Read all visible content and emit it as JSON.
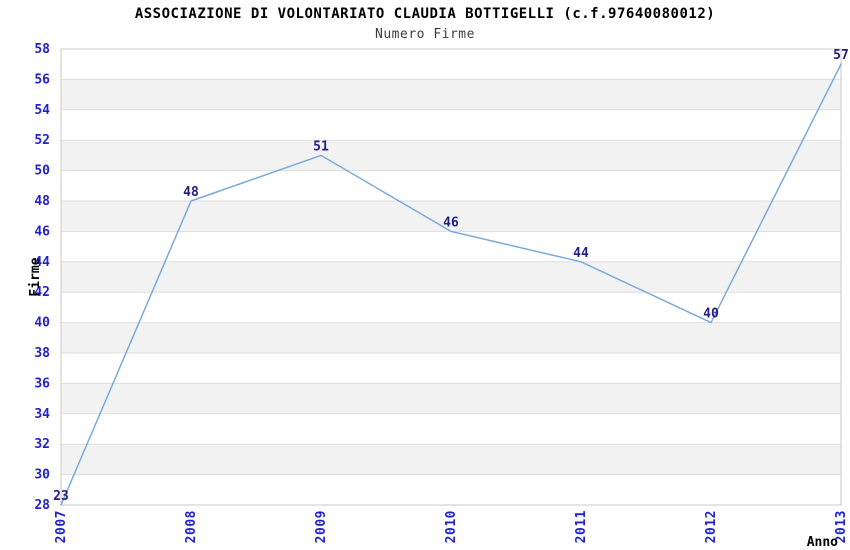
{
  "chart_data": {
    "type": "line",
    "title": "ASSOCIAZIONE DI VOLONTARIATO CLAUDIA BOTTIGELLI (c.f.97640080012)",
    "subtitle": "Numero Firme",
    "xlabel": "Anno",
    "ylabel": "Firme",
    "categories": [
      "2007",
      "2008",
      "2009",
      "2010",
      "2011",
      "2012",
      "2013"
    ],
    "values": [
      23,
      48,
      51,
      46,
      44,
      40,
      57
    ],
    "ylim": [
      28,
      58
    ],
    "ytick_step": 2,
    "grid": "horizontal",
    "banded_background": true,
    "markers": "none",
    "legend": "none",
    "note": "value 23 (2007) lies below the y-axis minimum and is clipped at the plot bottom",
    "colors": {
      "line": "#7aa9d9",
      "tick_label": "#2222cc",
      "point_label": "#202082",
      "band": "#f2f2f2",
      "gridline": "#dddddd",
      "plot_border": "#c9c9c9",
      "title": "#000000",
      "subtitle": "#3c3c3c",
      "axis_title": "#000000"
    }
  }
}
